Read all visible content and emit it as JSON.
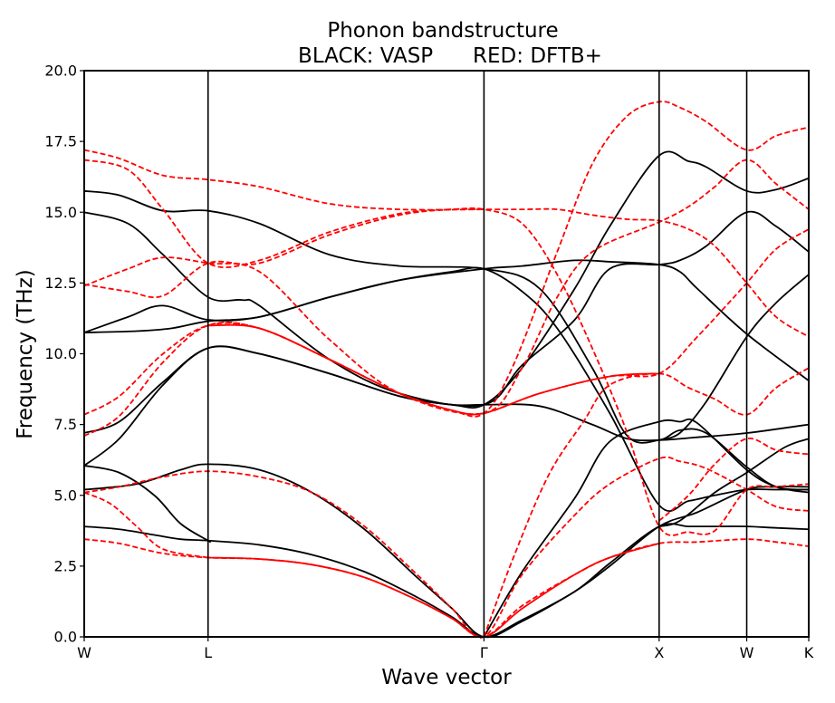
{
  "chart_data": {
    "type": "line",
    "title": "Phonon bandstructure",
    "subtitle": "BLACK: VASP      RED: DFTB+",
    "xlabel": "Wave vector",
    "ylabel": "Frequency (THz)",
    "ylim": [
      0,
      20
    ],
    "yticks": [
      "0.0",
      "2.5",
      "5.0",
      "7.5",
      "10.0",
      "12.5",
      "15.0",
      "17.5",
      "20.0"
    ],
    "xticks": [
      "W",
      "L",
      "Γ",
      "X",
      "W",
      "K"
    ],
    "xtick_positions": [
      0,
      0.707,
      2.282,
      3.282,
      3.782,
      4.136
    ],
    "grid": false,
    "series": [
      {
        "color": "#000000",
        "style": "solid",
        "x": [
          0,
          0.2,
          0.4,
          0.55,
          0.707,
          1.0,
          1.3,
          1.6,
          1.9,
          2.1,
          2.282,
          2.5,
          2.8,
          3.0,
          3.282,
          3.45,
          3.6,
          3.782,
          3.95,
          4.136
        ],
        "y": [
          3.9,
          3.8,
          3.6,
          3.45,
          3.4,
          3.25,
          2.9,
          2.3,
          1.4,
          0.7,
          0.0,
          0.6,
          1.6,
          2.6,
          3.9,
          3.9,
          3.9,
          3.9,
          3.85,
          3.8
        ]
      },
      {
        "color": "#000000",
        "style": "solid",
        "x": [
          0,
          0.3,
          0.55,
          0.707,
          1.0,
          1.3,
          1.6,
          1.9,
          2.1,
          2.282,
          2.5,
          2.8,
          3.0,
          3.282,
          3.5,
          3.782,
          3.95,
          4.136
        ],
        "y": [
          5.2,
          5.4,
          5.9,
          6.1,
          5.9,
          5.1,
          3.8,
          2.1,
          1.0,
          0.0,
          0.55,
          1.6,
          2.5,
          3.9,
          4.4,
          5.2,
          5.3,
          5.3
        ]
      },
      {
        "color": "#000000",
        "style": "solid",
        "x": [
          0,
          0.2,
          0.4,
          0.55,
          0.707,
          0.707
        ],
        "y": [
          6.05,
          5.8,
          5.0,
          4.0,
          3.4,
          3.4
        ]
      },
      {
        "color": "#000000",
        "style": "solid",
        "x": [
          2.282,
          2.5,
          2.8,
          3.0,
          3.282,
          3.4,
          3.5,
          3.782,
          3.95,
          4.136
        ],
        "y": [
          0.0,
          2.3,
          4.9,
          6.9,
          7.6,
          7.6,
          7.55,
          5.9,
          5.3,
          5.1
        ]
      },
      {
        "color": "#000000",
        "style": "solid",
        "x": [
          3.282,
          3.4,
          3.6,
          3.782,
          4.0,
          4.136
        ],
        "y": [
          3.9,
          4.1,
          5.1,
          5.8,
          6.7,
          7.0
        ]
      },
      {
        "color": "#000000",
        "style": "solid",
        "x": [
          0,
          0.2,
          0.45,
          0.707,
          1.0,
          1.4,
          1.8,
          2.1,
          2.282,
          2.6,
          2.9,
          3.1,
          3.282,
          3.5,
          3.782,
          4.136
        ],
        "y": [
          6.05,
          7.0,
          8.9,
          10.2,
          10.0,
          9.3,
          8.5,
          8.2,
          8.2,
          8.15,
          7.5,
          7.0,
          6.95,
          7.05,
          7.2,
          7.5
        ]
      },
      {
        "color": "#000000",
        "style": "solid",
        "x": [
          0,
          0.2,
          0.45,
          0.707,
          1.0,
          1.4,
          1.8,
          2.1,
          2.282,
          2.5,
          2.8,
          3.0,
          3.282,
          3.45,
          3.55,
          3.782,
          3.95,
          4.136
        ],
        "y": [
          7.2,
          7.6,
          9.0,
          10.2,
          10.0,
          9.3,
          8.5,
          8.2,
          8.2,
          9.5,
          12.3,
          14.5,
          17.0,
          16.8,
          16.6,
          15.75,
          15.8,
          16.2
        ]
      },
      {
        "color": "#000000",
        "style": "solid",
        "x": [
          0,
          0.3,
          0.5,
          0.707,
          1.0,
          1.4,
          1.8,
          2.1,
          2.282,
          2.5,
          2.7,
          3.0,
          3.282,
          3.45,
          3.6,
          3.782,
          3.95,
          4.136
        ],
        "y": [
          10.75,
          10.8,
          10.9,
          11.15,
          11.3,
          12.0,
          12.6,
          12.9,
          13.0,
          12.2,
          10.9,
          7.9,
          4.65,
          4.8,
          5.0,
          5.2,
          5.2,
          5.2
        ]
      },
      {
        "color": "#000000",
        "style": "solid",
        "x": [
          0,
          0.25,
          0.45,
          0.707,
          1.0,
          1.4,
          1.8,
          2.282,
          2.5,
          2.8,
          3.0,
          3.282,
          3.4,
          3.5,
          3.782,
          4.136
        ],
        "y": [
          10.75,
          11.3,
          11.7,
          11.2,
          11.3,
          12.0,
          12.6,
          13.0,
          13.1,
          13.3,
          13.25,
          13.15,
          12.9,
          12.3,
          10.7,
          9.05
        ]
      },
      {
        "color": "#000000",
        "style": "solid",
        "x": [
          0,
          0.25,
          0.45,
          0.707,
          0.9,
          1.0,
          1.4,
          1.8,
          2.282,
          2.5,
          2.8,
          3.0,
          3.282,
          3.4,
          3.55,
          3.782,
          3.95,
          4.136
        ],
        "y": [
          15.0,
          14.6,
          13.5,
          12.0,
          11.9,
          11.7,
          9.8,
          8.6,
          8.2,
          9.6,
          11.2,
          13.0,
          13.15,
          13.3,
          13.8,
          15.0,
          14.5,
          13.6
        ]
      },
      {
        "color": "#000000",
        "style": "solid",
        "x": [
          0,
          0.2,
          0.45,
          0.707,
          1.0,
          1.4,
          1.8,
          2.282,
          2.6,
          2.9,
          3.1,
          3.282,
          3.4,
          3.55,
          3.782,
          3.95,
          4.136
        ],
        "y": [
          15.75,
          15.6,
          15.05,
          15.05,
          14.6,
          13.5,
          13.1,
          13.0,
          12.3,
          9.5,
          7.1,
          6.95,
          7.3,
          7.2,
          6.0,
          5.3,
          5.2
        ]
      },
      {
        "color": "#000000",
        "style": "solid",
        "x": [
          3.282,
          3.4,
          3.55,
          3.782,
          3.95,
          4.136
        ],
        "y": [
          6.95,
          7.2,
          8.3,
          10.6,
          11.8,
          12.8
        ]
      },
      {
        "color": "#ff0000",
        "style": "dashed",
        "x": [
          0,
          0.2,
          0.45,
          0.707,
          1.0,
          1.3,
          1.6,
          1.9,
          2.1,
          2.282,
          2.5,
          2.8,
          3.0,
          3.282,
          3.5,
          3.782,
          3.95,
          4.136
        ],
        "y": [
          3.45,
          3.3,
          2.95,
          2.8,
          2.75,
          2.55,
          2.1,
          1.3,
          0.65,
          0.0,
          1.1,
          2.2,
          2.8,
          3.3,
          3.35,
          3.45,
          3.35,
          3.2
        ]
      },
      {
        "color": "#ff0000",
        "style": "solid",
        "x": [
          0.707,
          1.0,
          1.3,
          1.6,
          1.9,
          2.1,
          2.282,
          2.5,
          2.8,
          3.0,
          3.282
        ],
        "y": [
          2.8,
          2.75,
          2.55,
          2.1,
          1.3,
          0.65,
          0.0,
          1.0,
          2.2,
          2.8,
          3.3
        ]
      },
      {
        "color": "#ff0000",
        "style": "dashed",
        "x": [
          0,
          0.2,
          0.45,
          0.707,
          1.0,
          1.3,
          1.6,
          1.9,
          2.1,
          2.282,
          2.5,
          2.8,
          3.0,
          3.282,
          3.4,
          3.55,
          3.782,
          3.95,
          4.136
        ],
        "y": [
          5.1,
          5.3,
          5.65,
          5.85,
          5.65,
          5.1,
          3.9,
          2.2,
          1.0,
          0.0,
          2.2,
          4.3,
          5.4,
          6.3,
          6.2,
          5.95,
          5.2,
          4.6,
          4.45
        ]
      },
      {
        "color": "#ff0000",
        "style": "dashed",
        "x": [
          0,
          0.15,
          0.3,
          0.45,
          0.707
        ],
        "y": [
          5.1,
          4.7,
          3.9,
          3.1,
          2.8
        ]
      },
      {
        "color": "#ff0000",
        "style": "dashed",
        "x": [
          2.282,
          2.45,
          2.65,
          2.85,
          3.0,
          3.282,
          3.45,
          3.6,
          3.782,
          3.95,
          4.136
        ],
        "y": [
          0.0,
          2.8,
          5.7,
          7.6,
          8.9,
          9.3,
          8.8,
          8.4,
          7.85,
          8.8,
          9.5
        ]
      },
      {
        "color": "#ff0000",
        "style": "dashed",
        "x": [
          3.282,
          3.45,
          3.6,
          3.782,
          3.95,
          4.136
        ],
        "y": [
          4.1,
          5.0,
          6.1,
          7.0,
          6.6,
          6.45
        ]
      },
      {
        "color": "#ff0000",
        "style": "dashed",
        "x": [
          0,
          0.2,
          0.45,
          0.707,
          1.0,
          1.4,
          1.8,
          2.1,
          2.282,
          2.6,
          3.0,
          3.282,
          3.5,
          3.782,
          3.95,
          4.136
        ],
        "y": [
          7.1,
          7.8,
          9.7,
          11.0,
          10.9,
          9.8,
          8.6,
          8.0,
          7.9,
          8.6,
          9.2,
          9.3,
          10.6,
          12.5,
          13.7,
          14.4
        ]
      },
      {
        "color": "#ff0000",
        "style": "solid",
        "x": [
          0.707,
          1.0,
          1.4,
          1.8,
          2.1,
          2.282,
          2.6,
          3.0,
          3.282
        ],
        "y": [
          11.0,
          10.9,
          9.8,
          8.6,
          8.0,
          7.9,
          8.6,
          9.2,
          9.3
        ]
      },
      {
        "color": "#ff0000",
        "style": "dashed",
        "x": [
          0,
          0.2,
          0.45,
          0.707,
          1.0,
          1.4,
          1.8,
          2.1,
          2.282,
          2.45,
          2.7,
          2.9,
          3.1,
          3.282,
          3.4,
          3.55,
          3.782,
          3.95,
          4.136
        ],
        "y": [
          7.85,
          8.5,
          10.0,
          11.0,
          10.9,
          9.8,
          8.6,
          8.0,
          7.9,
          9.6,
          13.6,
          16.7,
          18.4,
          18.9,
          18.7,
          18.2,
          17.2,
          17.7,
          18.0
        ]
      },
      {
        "color": "#ff0000",
        "style": "dashed",
        "x": [
          0,
          0.25,
          0.45,
          0.707,
          1.0,
          1.4,
          1.8,
          2.1,
          2.282,
          2.5,
          2.7,
          2.9,
          3.1,
          3.282,
          3.45,
          3.6,
          3.782,
          3.95,
          4.136
        ],
        "y": [
          12.45,
          12.2,
          12.05,
          13.2,
          13.2,
          14.2,
          14.9,
          15.1,
          15.1,
          15.1,
          15.1,
          14.9,
          14.75,
          14.7,
          14.4,
          13.8,
          12.5,
          11.3,
          10.6
        ]
      },
      {
        "color": "#ff0000",
        "style": "dashed",
        "x": [
          0,
          0.25,
          0.45,
          0.707,
          1.0,
          1.4,
          1.8,
          2.282,
          2.5,
          2.7,
          2.9,
          3.282,
          3.45,
          3.6,
          3.782,
          3.95,
          4.136
        ],
        "y": [
          12.4,
          13.0,
          13.4,
          13.2,
          12.9,
          10.5,
          8.6,
          7.9,
          9.5,
          12.0,
          13.6,
          14.65,
          15.2,
          15.9,
          16.85,
          16.0,
          15.1
        ]
      },
      {
        "color": "#ff0000",
        "style": "dashed",
        "x": [
          0,
          0.25,
          0.45,
          0.707,
          1.0,
          1.4,
          1.8,
          2.1,
          2.282,
          2.5,
          2.7,
          2.9,
          3.1,
          3.282,
          3.45,
          3.6,
          3.782,
          3.95,
          4.136
        ],
        "y": [
          16.85,
          16.5,
          15.1,
          13.2,
          13.3,
          14.3,
          14.95,
          15.1,
          15.1,
          14.6,
          12.8,
          10.2,
          7.2,
          3.9,
          3.7,
          3.75,
          5.2,
          5.3,
          5.4
        ]
      },
      {
        "color": "#ff0000",
        "style": "dashed",
        "x": [
          0,
          0.2,
          0.45,
          0.707,
          1.0,
          1.4,
          1.8,
          2.282
        ],
        "y": [
          17.2,
          16.9,
          16.3,
          16.15,
          15.9,
          15.3,
          15.1,
          15.1
        ]
      }
    ]
  }
}
